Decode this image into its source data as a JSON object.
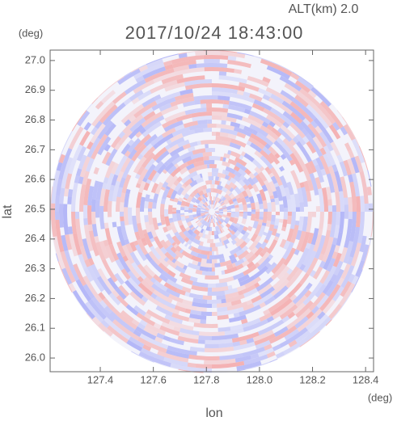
{
  "chart_data": {
    "type": "ppi",
    "title": "2017/10/24 18:43:00",
    "annotation": "ALT(km) 2.0",
    "xlabel": "lon",
    "ylabel": "lat",
    "xunit": "(deg)",
    "yunit": "(deg)",
    "xlim": [
      127.211,
      128.43
    ],
    "ylim": [
      25.954,
      27.035
    ],
    "xticks": [
      127.4,
      127.6,
      127.8,
      {
        "value": 128,
        "label": "128.0"
      },
      128.2,
      128.4
    ],
    "yticks": [
      {
        "value": 26,
        "label": "26.0"
      },
      26.1,
      26.2,
      26.3,
      26.4,
      26.5,
      26.6,
      26.7,
      26.8,
      26.9,
      {
        "value": 27,
        "label": "27.0"
      }
    ],
    "colors": [
      "#f4a6a6",
      "#a8acf6"
    ]
  }
}
